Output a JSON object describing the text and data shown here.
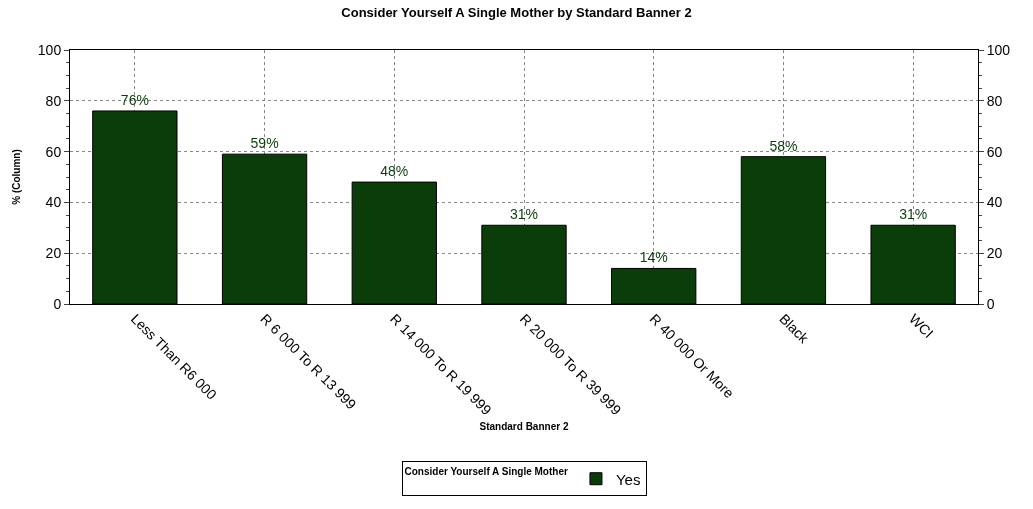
{
  "chart_data": {
    "type": "bar",
    "title": "Consider Yourself A Single Mother by Standard Banner 2",
    "xlabel": "Standard Banner 2",
    "ylabel": "% (Column)",
    "legend_title": "Consider Yourself A Single Mother",
    "categories": [
      "Less Than R6 000",
      "R 6 000 To R 13 999",
      "R 14 000 To R 19 999",
      "R 20 000 To R 39 999",
      "R 40 000 Or More",
      "Black",
      "WCI"
    ],
    "series": [
      {
        "name": "Yes",
        "color": "#0b3d0b",
        "values": [
          76,
          59,
          48,
          31,
          14,
          58,
          31
        ],
        "value_labels": [
          "76%",
          "59%",
          "48%",
          "31%",
          "14%",
          "58%",
          "31%"
        ]
      }
    ],
    "ylim": [
      0,
      100
    ],
    "yticks": [
      0,
      20,
      40,
      60,
      80,
      100
    ],
    "y2lim": [
      0,
      100
    ],
    "y2ticks": [
      0,
      20,
      40,
      60,
      80,
      100
    ],
    "grid": true,
    "legend": "bottom"
  }
}
